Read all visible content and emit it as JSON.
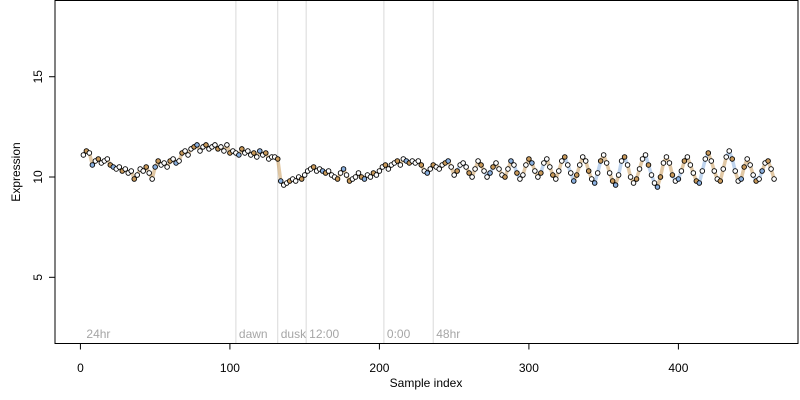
{
  "chart_data": {
    "type": "scatter",
    "title": "",
    "xlabel": "Sample index",
    "ylabel": "Expression",
    "xlim": [
      -17,
      480
    ],
    "ylim": [
      1.7,
      18.8
    ],
    "x_ticks": [
      0,
      100,
      200,
      300,
      400
    ],
    "y_ticks": [
      5,
      10,
      15
    ],
    "grid": false,
    "legend": "none",
    "period_markers": [
      {
        "x": 2,
        "label": "24hr"
      },
      {
        "x": 104,
        "label": "dawn"
      },
      {
        "x": 132,
        "label": "dusk"
      },
      {
        "x": 151,
        "label": "12:00"
      },
      {
        "x": 203,
        "label": "0:00"
      },
      {
        "x": 236,
        "label": "48hr"
      }
    ],
    "colors": {
      "point_stroke": "#000000",
      "orange": "#c99a5b",
      "blue": "#8ab0e0",
      "marker_line": "#d9d9d9",
      "label_gray": "#a6a6a6"
    },
    "series": [
      {
        "values": [
          [
            2,
            11.1
          ],
          [
            4,
            11.3
          ],
          [
            6,
            11.2
          ],
          [
            8,
            10.6
          ],
          [
            10,
            10.8
          ],
          [
            12,
            10.9
          ],
          [
            14,
            10.7
          ],
          [
            16,
            10.8
          ],
          [
            18,
            10.9
          ],
          [
            20,
            10.6
          ],
          [
            22,
            10.5
          ],
          [
            24,
            10.4
          ],
          [
            26,
            10.5
          ],
          [
            28,
            10.3
          ],
          [
            30,
            10.4
          ],
          [
            32,
            10.2
          ],
          [
            34,
            10.3
          ],
          [
            36,
            9.9
          ],
          [
            38,
            10.1
          ],
          [
            40,
            10.4
          ],
          [
            42,
            10.3
          ],
          [
            44,
            10.5
          ],
          [
            46,
            10.2
          ],
          [
            48,
            9.9
          ],
          [
            50,
            10.5
          ],
          [
            52,
            10.8
          ],
          [
            54,
            10.6
          ],
          [
            56,
            10.7
          ],
          [
            58,
            10.5
          ],
          [
            60,
            10.8
          ],
          [
            62,
            10.9
          ],
          [
            64,
            10.7
          ],
          [
            66,
            10.8
          ],
          [
            68,
            11.2
          ],
          [
            70,
            11.3
          ],
          [
            72,
            11.1
          ],
          [
            74,
            11.4
          ],
          [
            76,
            11.5
          ],
          [
            78,
            11.6
          ],
          [
            80,
            11.3
          ],
          [
            82,
            11.5
          ],
          [
            84,
            11.6
          ],
          [
            86,
            11.4
          ],
          [
            88,
            11.5
          ],
          [
            90,
            11.6
          ],
          [
            92,
            11.4
          ],
          [
            94,
            11.5
          ],
          [
            96,
            11.3
          ],
          [
            98,
            11.6
          ],
          [
            100,
            11.2
          ],
          [
            102,
            11.3
          ],
          [
            104,
            11.2
          ],
          [
            106,
            11.1
          ],
          [
            108,
            11.4
          ],
          [
            110,
            11.2
          ],
          [
            112,
            11.3
          ],
          [
            114,
            11.1
          ],
          [
            116,
            11.2
          ],
          [
            118,
            11.0
          ],
          [
            120,
            11.3
          ],
          [
            122,
            11.1
          ],
          [
            124,
            11.2
          ],
          [
            126,
            10.9
          ],
          [
            128,
            11.0
          ],
          [
            130,
            11.0
          ],
          [
            132,
            10.9
          ],
          [
            134,
            9.8
          ],
          [
            136,
            9.6
          ],
          [
            138,
            9.7
          ],
          [
            140,
            9.8
          ],
          [
            142,
            9.9
          ],
          [
            144,
            9.8
          ],
          [
            146,
            10.0
          ],
          [
            148,
            9.9
          ],
          [
            150,
            10.1
          ],
          [
            152,
            10.3
          ],
          [
            154,
            10.4
          ],
          [
            156,
            10.5
          ],
          [
            158,
            10.3
          ],
          [
            160,
            10.4
          ],
          [
            162,
            10.3
          ],
          [
            164,
            10.2
          ],
          [
            166,
            10.3
          ],
          [
            168,
            10.1
          ],
          [
            170,
            10.0
          ],
          [
            172,
            9.9
          ],
          [
            174,
            10.2
          ],
          [
            176,
            10.4
          ],
          [
            178,
            10.1
          ],
          [
            180,
            9.8
          ],
          [
            182,
            9.9
          ],
          [
            184,
            10.0
          ],
          [
            186,
            10.2
          ],
          [
            188,
            10.0
          ],
          [
            190,
            9.9
          ],
          [
            192,
            10.1
          ],
          [
            194,
            10.0
          ],
          [
            196,
            10.2
          ],
          [
            198,
            10.1
          ],
          [
            200,
            10.3
          ],
          [
            202,
            10.5
          ],
          [
            204,
            10.6
          ],
          [
            206,
            10.4
          ],
          [
            208,
            10.6
          ],
          [
            210,
            10.7
          ],
          [
            212,
            10.8
          ],
          [
            214,
            10.6
          ],
          [
            216,
            10.9
          ],
          [
            218,
            10.8
          ],
          [
            220,
            10.7
          ],
          [
            222,
            10.8
          ],
          [
            224,
            10.7
          ],
          [
            226,
            10.8
          ],
          [
            228,
            10.6
          ],
          [
            230,
            10.3
          ],
          [
            232,
            10.2
          ],
          [
            234,
            10.4
          ],
          [
            236,
            10.6
          ],
          [
            238,
            10.5
          ],
          [
            240,
            10.4
          ],
          [
            242,
            10.6
          ],
          [
            244,
            10.7
          ],
          [
            246,
            10.8
          ],
          [
            248,
            10.5
          ],
          [
            250,
            10.1
          ],
          [
            252,
            10.3
          ],
          [
            254,
            10.6
          ],
          [
            256,
            10.7
          ],
          [
            258,
            10.5
          ],
          [
            260,
            10.2
          ],
          [
            262,
            10.0
          ],
          [
            264,
            10.4
          ],
          [
            266,
            10.8
          ],
          [
            268,
            10.6
          ],
          [
            270,
            10.3
          ],
          [
            272,
            10.0
          ],
          [
            274,
            10.2
          ],
          [
            276,
            10.5
          ],
          [
            278,
            10.7
          ],
          [
            280,
            10.4
          ],
          [
            282,
            10.1
          ],
          [
            284,
            10.0
          ],
          [
            286,
            10.4
          ],
          [
            288,
            10.8
          ],
          [
            290,
            10.6
          ],
          [
            292,
            10.2
          ],
          [
            294,
            9.9
          ],
          [
            296,
            10.1
          ],
          [
            298,
            10.6
          ],
          [
            300,
            10.9
          ],
          [
            302,
            10.7
          ],
          [
            304,
            10.3
          ],
          [
            306,
            10.0
          ],
          [
            308,
            10.2
          ],
          [
            310,
            10.7
          ],
          [
            312,
            10.9
          ],
          [
            314,
            10.5
          ],
          [
            316,
            10.1
          ],
          [
            318,
            9.9
          ],
          [
            320,
            10.3
          ],
          [
            322,
            10.8
          ],
          [
            324,
            11.0
          ],
          [
            326,
            10.6
          ],
          [
            328,
            10.2
          ],
          [
            330,
            9.8
          ],
          [
            332,
            10.1
          ],
          [
            334,
            10.6
          ],
          [
            336,
            11.0
          ],
          [
            338,
            10.8
          ],
          [
            340,
            10.3
          ],
          [
            342,
            9.9
          ],
          [
            344,
            9.7
          ],
          [
            346,
            10.2
          ],
          [
            348,
            10.8
          ],
          [
            350,
            11.1
          ],
          [
            352,
            10.7
          ],
          [
            354,
            10.2
          ],
          [
            356,
            9.8
          ],
          [
            358,
            9.6
          ],
          [
            360,
            10.1
          ],
          [
            362,
            10.8
          ],
          [
            364,
            11.0
          ],
          [
            366,
            10.6
          ],
          [
            368,
            10.0
          ],
          [
            370,
            9.7
          ],
          [
            372,
            9.9
          ],
          [
            374,
            10.4
          ],
          [
            376,
            10.9
          ],
          [
            378,
            11.1
          ],
          [
            380,
            10.6
          ],
          [
            382,
            10.1
          ],
          [
            384,
            9.7
          ],
          [
            386,
            9.5
          ],
          [
            388,
            10.0
          ],
          [
            390,
            10.7
          ],
          [
            392,
            11.0
          ],
          [
            394,
            10.7
          ],
          [
            396,
            10.1
          ],
          [
            398,
            9.8
          ],
          [
            400,
            9.9
          ],
          [
            402,
            10.3
          ],
          [
            404,
            10.8
          ],
          [
            406,
            11.0
          ],
          [
            408,
            10.6
          ],
          [
            410,
            10.2
          ],
          [
            412,
            9.8
          ],
          [
            414,
            9.7
          ],
          [
            416,
            10.3
          ],
          [
            418,
            10.9
          ],
          [
            420,
            11.2
          ],
          [
            422,
            10.8
          ],
          [
            424,
            10.3
          ],
          [
            426,
            9.9
          ],
          [
            428,
            9.8
          ],
          [
            430,
            10.4
          ],
          [
            432,
            11.0
          ],
          [
            434,
            11.3
          ],
          [
            436,
            10.9
          ],
          [
            438,
            10.3
          ],
          [
            440,
            9.8
          ],
          [
            442,
            9.9
          ],
          [
            444,
            10.5
          ],
          [
            446,
            10.9
          ],
          [
            448,
            10.6
          ],
          [
            450,
            10.1
          ],
          [
            452,
            9.8
          ],
          [
            454,
            9.9
          ],
          [
            456,
            10.3
          ],
          [
            458,
            10.7
          ],
          [
            460,
            10.8
          ],
          [
            462,
            10.4
          ],
          [
            464,
            9.9
          ]
        ]
      }
    ]
  }
}
